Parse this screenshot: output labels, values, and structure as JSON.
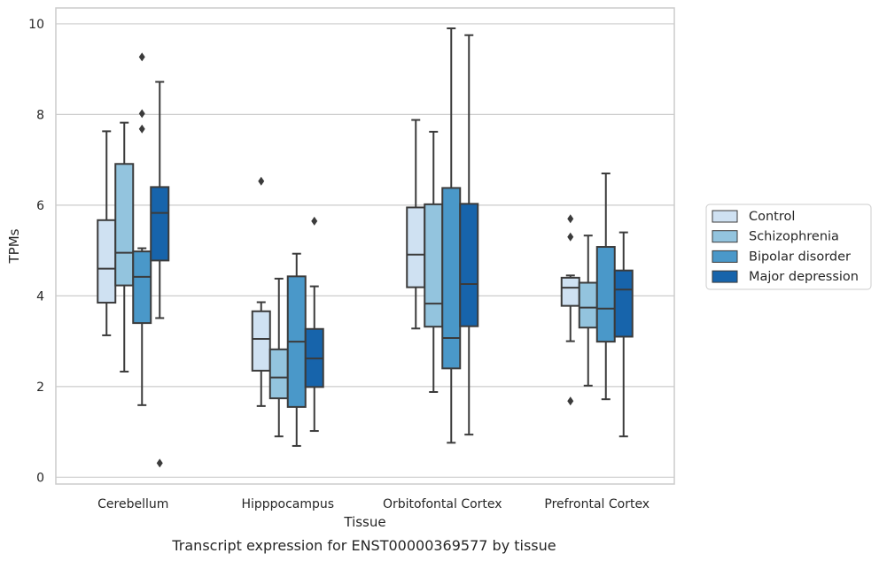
{
  "chart_data": {
    "type": "box",
    "caption": "Transcript expression for ENST00000369577 by tissue",
    "xlabel": "Tissue",
    "ylabel": "TPMs",
    "ylim": [
      -0.15,
      10.35
    ],
    "yticks": [
      0,
      2,
      4,
      6,
      8,
      10
    ],
    "grid": "horizontal",
    "legend_position": "right",
    "categories": [
      "Cerebellum",
      "Hipppocampus",
      "Orbitofontal Cortex",
      "Prefrontal Cortex"
    ],
    "series": [
      {
        "name": "Control",
        "color": "#cfe1f2",
        "boxes": [
          {
            "whislo": 3.13,
            "q1": 3.85,
            "med": 4.6,
            "q3": 5.67,
            "whishi": 7.63,
            "fliers": []
          },
          {
            "whislo": 1.57,
            "q1": 2.35,
            "med": 3.05,
            "q3": 3.66,
            "whishi": 3.86,
            "fliers": [
              6.53
            ]
          },
          {
            "whislo": 3.28,
            "q1": 4.19,
            "med": 4.91,
            "q3": 5.95,
            "whishi": 7.88,
            "fliers": []
          },
          {
            "whislo": 3.0,
            "q1": 3.78,
            "med": 4.18,
            "q3": 4.4,
            "whishi": 4.45,
            "fliers": [
              5.7,
              5.3,
              1.68
            ]
          }
        ]
      },
      {
        "name": "Schizophrenia",
        "color": "#93c4de",
        "boxes": [
          {
            "whislo": 2.33,
            "q1": 4.23,
            "med": 4.95,
            "q3": 6.91,
            "whishi": 7.82,
            "fliers": []
          },
          {
            "whislo": 0.9,
            "q1": 1.74,
            "med": 2.2,
            "q3": 2.82,
            "whishi": 4.38,
            "fliers": []
          },
          {
            "whislo": 1.88,
            "q1": 3.32,
            "med": 3.83,
            "q3": 6.02,
            "whishi": 7.62,
            "fliers": []
          },
          {
            "whislo": 2.02,
            "q1": 3.3,
            "med": 3.74,
            "q3": 4.29,
            "whishi": 5.33,
            "fliers": []
          }
        ]
      },
      {
        "name": "Bipolar disorder",
        "color": "#4a98c9",
        "boxes": [
          {
            "whislo": 1.59,
            "q1": 3.4,
            "med": 4.42,
            "q3": 4.98,
            "whishi": 5.05,
            "fliers": [
              9.27,
              8.02,
              7.68
            ]
          },
          {
            "whislo": 0.69,
            "q1": 1.55,
            "med": 2.99,
            "q3": 4.43,
            "whishi": 4.93,
            "fliers": []
          },
          {
            "whislo": 0.76,
            "q1": 2.4,
            "med": 3.07,
            "q3": 6.38,
            "whishi": 9.9,
            "fliers": []
          },
          {
            "whislo": 1.72,
            "q1": 2.99,
            "med": 3.72,
            "q3": 5.08,
            "whishi": 6.7,
            "fliers": []
          }
        ]
      },
      {
        "name": "Major depression",
        "color": "#1764ab",
        "boxes": [
          {
            "whislo": 3.51,
            "q1": 4.78,
            "med": 5.83,
            "q3": 6.4,
            "whishi": 8.72,
            "fliers": [
              0.31
            ]
          },
          {
            "whislo": 1.02,
            "q1": 1.99,
            "med": 2.62,
            "q3": 3.27,
            "whishi": 4.21,
            "fliers": [
              5.65
            ]
          },
          {
            "whislo": 0.94,
            "q1": 3.33,
            "med": 4.26,
            "q3": 6.03,
            "whishi": 9.75,
            "fliers": []
          },
          {
            "whislo": 0.9,
            "q1": 3.1,
            "med": 4.14,
            "q3": 4.56,
            "whishi": 5.4,
            "fliers": []
          }
        ]
      }
    ]
  }
}
